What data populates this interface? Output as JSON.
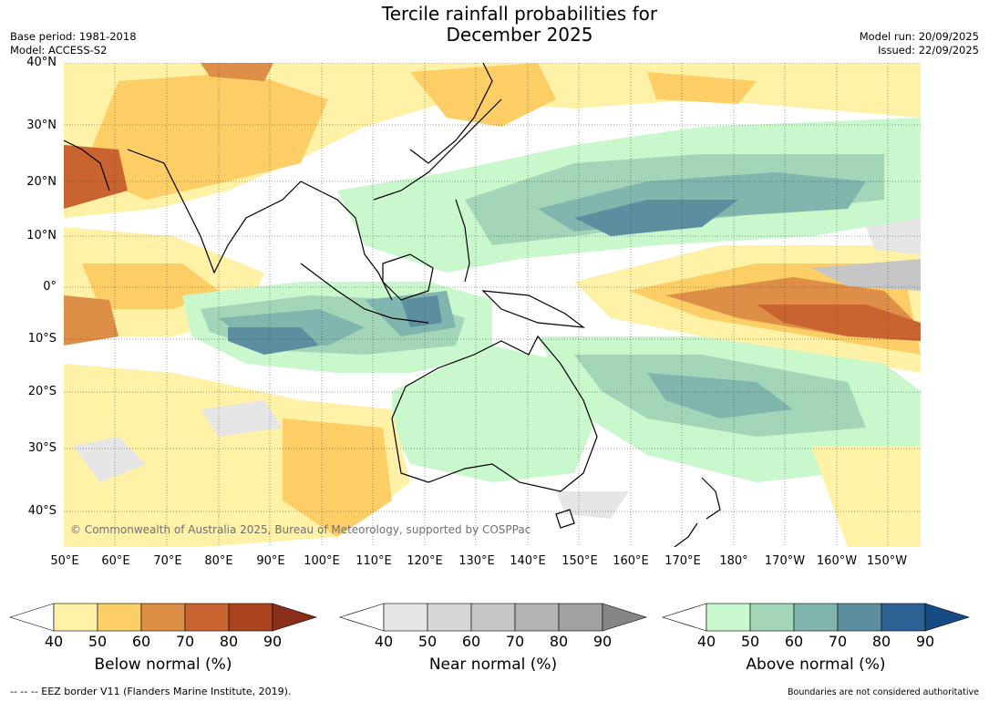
{
  "title_line1": "Tercile rainfall probabilities for",
  "title_line2": "December 2025",
  "base_period": "Base period: 1981-2018",
  "model": "Model: ACCESS-S2",
  "model_run": "Model run: 20/09/2025",
  "issued": "Issued: 22/09/2025",
  "copyright": "© Commonwealth of Australia 2025, Bureau of Meteorology, supported by COSPPac",
  "lat_ticks": [
    "40°N",
    "30°N",
    "20°N",
    "10°N",
    "0°",
    "10°S",
    "20°S",
    "30°S",
    "40°S"
  ],
  "lon_ticks": [
    "50°E",
    "60°E",
    "70°E",
    "80°E",
    "90°E",
    "100°E",
    "110°E",
    "120°E",
    "130°E",
    "140°E",
    "150°E",
    "160°E",
    "170°E",
    "180°",
    "170°W",
    "160°W",
    "150°W"
  ],
  "colorbars": [
    {
      "title": "Below normal (%)",
      "labels": [
        "40",
        "50",
        "60",
        "70",
        "80",
        "90"
      ],
      "colors": [
        "#fff1a6",
        "#fdcd66",
        "#de8f47",
        "#c9632f",
        "#a9441f",
        "#8a2d1a"
      ]
    },
    {
      "title": "Near normal (%)",
      "labels": [
        "40",
        "50",
        "60",
        "70",
        "80",
        "90"
      ],
      "colors": [
        "#e6e6e6",
        "#d6d6d6",
        "#c6c6c6",
        "#b3b3b3",
        "#a1a1a1",
        "#858585"
      ]
    },
    {
      "title": "Above normal (%)",
      "labels": [
        "40",
        "50",
        "60",
        "70",
        "80",
        "90"
      ],
      "colors": [
        "#c8f8cc",
        "#a3d6b8",
        "#81b6ae",
        "#5b8fa0",
        "#2e6193",
        "#174b86"
      ]
    }
  ],
  "footer_left": "--  --  -- EEZ border V11 (Flanders Marine Institute, 2019).",
  "footer_right": "Boundaries are not considered authoritative"
}
